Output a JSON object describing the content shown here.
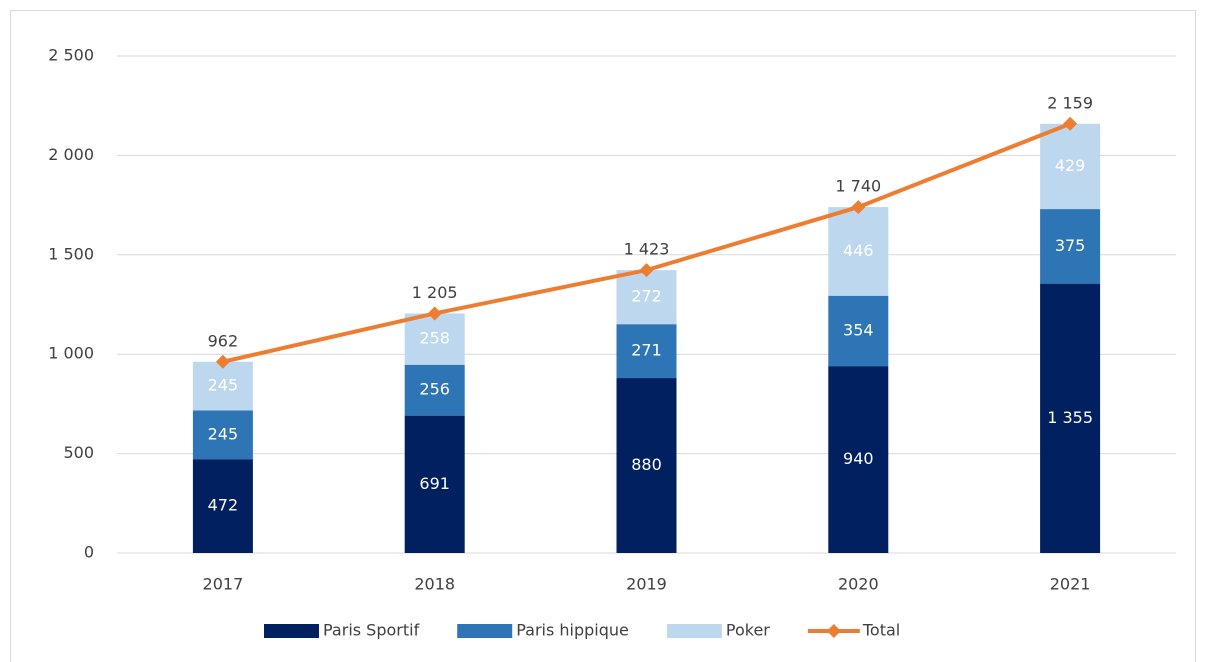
{
  "chart_data": {
    "type": "stacked-bar-line",
    "categories": [
      "2017",
      "2018",
      "2019",
      "2020",
      "2021"
    ],
    "series": [
      {
        "name": "Paris Sportif",
        "color": "#002060",
        "values": [
          472,
          691,
          880,
          940,
          1355
        ],
        "value_labels": [
          "472",
          "691",
          "880",
          "940",
          "1 355"
        ]
      },
      {
        "name": "Paris hippique",
        "color": "#2e75b6",
        "values": [
          245,
          256,
          271,
          354,
          375
        ]
      },
      {
        "name": "Poker",
        "color": "#bdd7ee",
        "values": [
          245,
          258,
          272,
          446,
          429
        ]
      },
      {
        "name": "Total",
        "color": "#ed7d31",
        "type": "line",
        "values": [
          962,
          1205,
          1423,
          1740,
          2159
        ],
        "value_labels": [
          "962",
          "1 205",
          "1 423",
          "1 740",
          "2 159"
        ]
      }
    ],
    "ylim": [
      0,
      2500
    ],
    "yticks": [
      0,
      500,
      {
        "value": 1000,
        "label": "1 000"
      },
      {
        "value": 1500,
        "label": "1 500"
      },
      {
        "value": 2000,
        "label": "2 000"
      },
      {
        "value": 2500,
        "label": "2 500"
      }
    ],
    "grid": true,
    "legend": "bottom"
  }
}
